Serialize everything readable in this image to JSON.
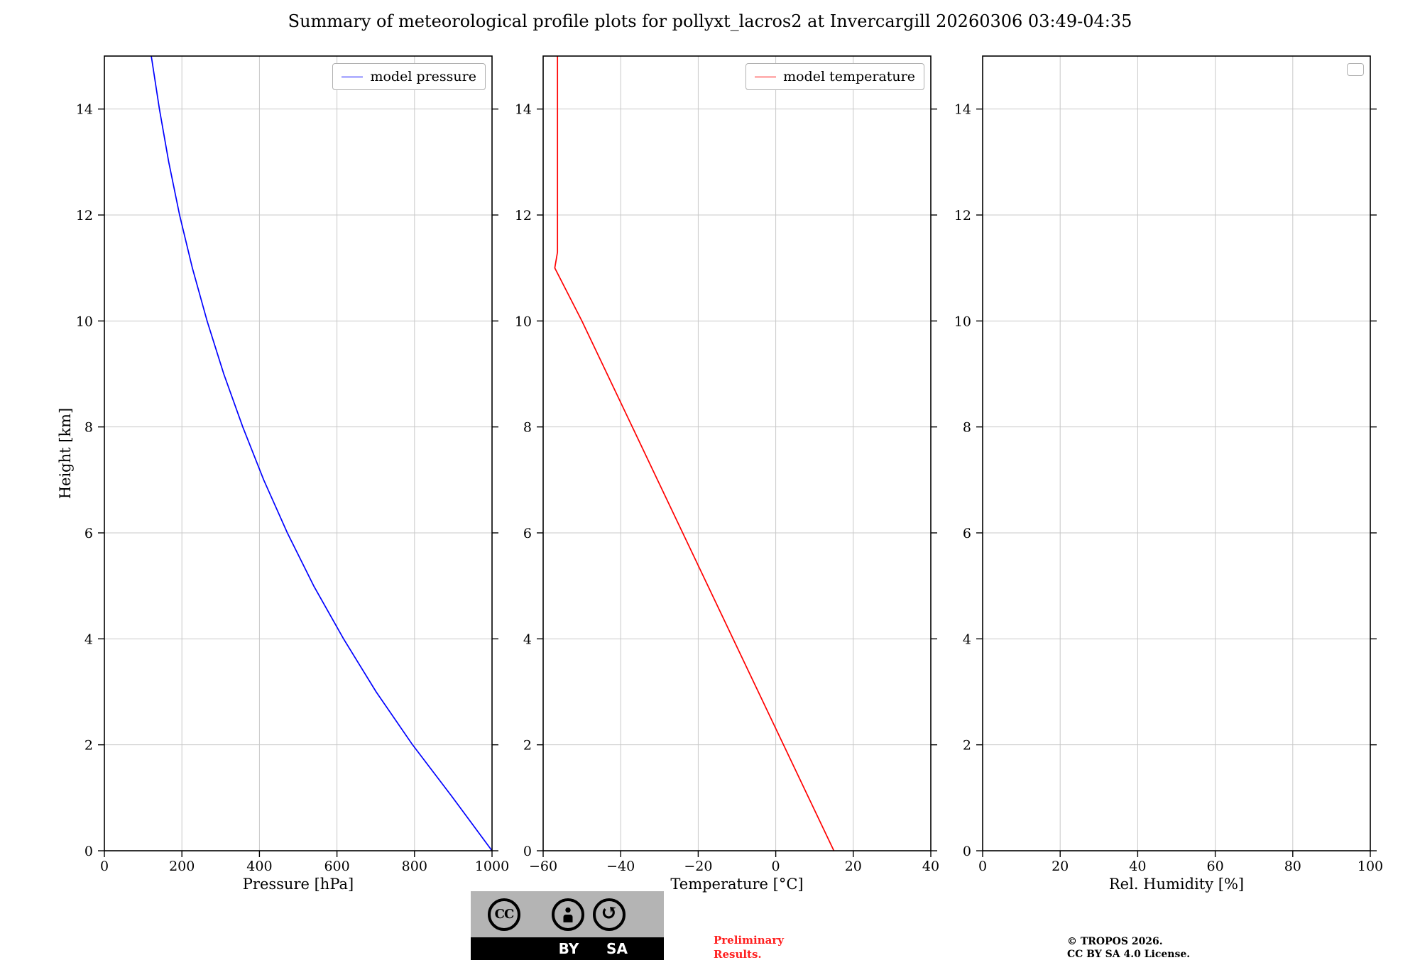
{
  "title": "Summary of meteorological profile plots for pollyxt_lacros2 at Invercargill 20260306 03:49-04:35",
  "chart_data": [
    {
      "type": "line",
      "xlabel": "Pressure [hPa]",
      "ylabel": "Height [km]",
      "xlim": [
        0,
        1000
      ],
      "ylim": [
        0,
        15
      ],
      "xticks": [
        0,
        200,
        400,
        600,
        800,
        1000
      ],
      "yticks": [
        0,
        2,
        4,
        6,
        8,
        10,
        12,
        14
      ],
      "grid": true,
      "grid_color": "#c9c9c9",
      "legend": {
        "label": "model pressure",
        "color": "#0000ff"
      },
      "series": [
        {
          "name": "model pressure",
          "color": "#0000ff",
          "y": [
            0,
            1,
            2,
            3,
            4,
            5,
            6,
            7,
            8,
            9,
            10,
            11,
            12,
            13,
            14,
            15
          ],
          "x": [
            1000,
            899,
            795,
            701,
            617,
            540,
            472,
            411,
            357,
            308,
            265,
            227,
            194,
            166,
            142,
            121
          ]
        }
      ]
    },
    {
      "type": "line",
      "xlabel": "Temperature [°C]",
      "ylabel": "",
      "xlim": [
        -60,
        40
      ],
      "ylim": [
        0,
        15
      ],
      "xticks": [
        -60,
        -40,
        -20,
        0,
        20,
        40
      ],
      "yticks": [
        0,
        2,
        4,
        6,
        8,
        10,
        12,
        14
      ],
      "grid": true,
      "grid_color": "#c9c9c9",
      "legend": {
        "label": "model temperature",
        "color": "#ff0000"
      },
      "series": [
        {
          "name": "model temperature",
          "color": "#ff0000",
          "y": [
            0,
            1,
            2,
            3,
            4,
            5,
            6,
            7,
            8,
            9,
            10,
            11,
            11.3,
            12,
            13,
            14,
            15
          ],
          "x": [
            15.0,
            8.5,
            2.0,
            -4.5,
            -11.0,
            -17.5,
            -24.0,
            -30.5,
            -37.0,
            -43.5,
            -50.0,
            -57.0,
            -56.3,
            -56.3,
            -56.3,
            -56.3,
            -56.3
          ]
        }
      ]
    },
    {
      "type": "line",
      "xlabel": "Rel. Humidity [%]",
      "ylabel": "",
      "xlim": [
        0,
        100
      ],
      "ylim": [
        0,
        15
      ],
      "xticks": [
        0,
        20,
        40,
        60,
        80,
        100
      ],
      "yticks": [
        0,
        2,
        4,
        6,
        8,
        10,
        12,
        14
      ],
      "grid": true,
      "grid_color": "#c9c9c9",
      "legend": {
        "label": "",
        "color": ""
      },
      "series": []
    }
  ],
  "footer": {
    "badge": {
      "cc_label": "CC",
      "by_label": "BY",
      "sa_label": "SA",
      "sa_arrow": "↺"
    },
    "preliminary_line1": "Preliminary",
    "preliminary_line2": "Results.",
    "copyright_line1": "© TROPOS 2026.",
    "copyright_line2": "CC BY SA 4.0 License."
  }
}
